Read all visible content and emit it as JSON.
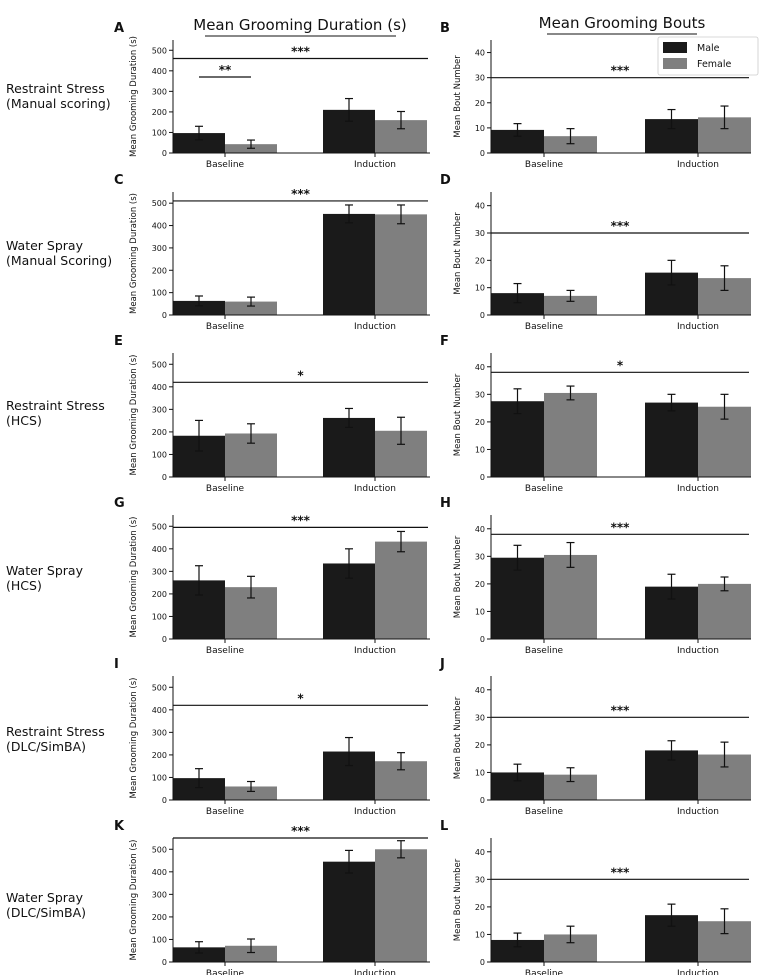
{
  "figure": {
    "column_titles": [
      "Mean Grooming Duration (s)",
      "Mean Grooming Bouts"
    ],
    "row_labels": [
      [
        "Restraint Stress",
        "(Manual scoring)"
      ],
      [
        "Water Spray",
        "(Manual Scoring)"
      ],
      [
        "Restraint Stress",
        "(HCS)"
      ],
      [
        "Water Spray",
        "(HCS)"
      ],
      [
        "Restraint Stress",
        "(DLC/SimBA)"
      ],
      [
        "Water Spray",
        "(DLC/SimBA)"
      ]
    ],
    "legend": {
      "items": [
        "Male",
        "Female"
      ]
    },
    "colors": {
      "male": "#1a1a1a",
      "female": "#7f7f7f",
      "axis": "#111111"
    }
  },
  "chart_data": [
    {
      "panel": "A",
      "type": "bar",
      "categories": [
        "Baseline",
        "Induction"
      ],
      "series": [
        {
          "name": "Male",
          "values": [
            97,
            210
          ],
          "errors": [
            33,
            55
          ]
        },
        {
          "name": "Female",
          "values": [
            43,
            160
          ],
          "errors": [
            20,
            42
          ]
        }
      ],
      "ylabel": "Mean Grooming Duration (s)",
      "ylim": [
        0,
        550
      ],
      "yticks": [
        0,
        100,
        200,
        300,
        400,
        500
      ],
      "significance": [
        {
          "label": "***",
          "span": "all",
          "y": 460
        },
        {
          "label": "**",
          "span": "baseline",
          "y": 370
        }
      ]
    },
    {
      "panel": "B",
      "type": "bar",
      "categories": [
        "Baseline",
        "Induction"
      ],
      "series": [
        {
          "name": "Male",
          "values": [
            9.2,
            13.5
          ],
          "errors": [
            2.5,
            3.8
          ]
        },
        {
          "name": "Female",
          "values": [
            6.7,
            14.2
          ],
          "errors": [
            3,
            4.5
          ]
        }
      ],
      "ylabel": "Mean Bout Number",
      "ylim": [
        0,
        45
      ],
      "yticks": [
        0,
        10,
        20,
        30,
        40
      ],
      "significance": [
        {
          "label": "***",
          "span": "all",
          "y": 30
        }
      ]
    },
    {
      "panel": "C",
      "type": "bar",
      "categories": [
        "Baseline",
        "Induction"
      ],
      "series": [
        {
          "name": "Male",
          "values": [
            63,
            452
          ],
          "errors": [
            22,
            40
          ]
        },
        {
          "name": "Female",
          "values": [
            60,
            450
          ],
          "errors": [
            20,
            42
          ]
        }
      ],
      "ylabel": "Mean Grooming Duration (s)",
      "ylim": [
        0,
        550
      ],
      "yticks": [
        0,
        100,
        200,
        300,
        400,
        500
      ],
      "significance": [
        {
          "label": "***",
          "span": "all",
          "y": 510
        }
      ]
    },
    {
      "panel": "D",
      "type": "bar",
      "categories": [
        "Baseline",
        "Induction"
      ],
      "series": [
        {
          "name": "Male",
          "values": [
            8,
            15.5
          ],
          "errors": [
            3.5,
            4.5
          ]
        },
        {
          "name": "Female",
          "values": [
            7,
            13.5
          ],
          "errors": [
            2,
            4.5
          ]
        }
      ],
      "ylabel": "Mean Bout Number",
      "ylim": [
        0,
        45
      ],
      "yticks": [
        0,
        10,
        20,
        30,
        40
      ],
      "significance": [
        {
          "label": "***",
          "span": "all",
          "y": 30
        }
      ]
    },
    {
      "panel": "E",
      "type": "bar",
      "categories": [
        "Baseline",
        "Induction"
      ],
      "series": [
        {
          "name": "Male",
          "values": [
            183,
            262
          ],
          "errors": [
            68,
            42
          ]
        },
        {
          "name": "Female",
          "values": [
            193,
            205
          ],
          "errors": [
            43,
            60
          ]
        }
      ],
      "ylabel": "Mean Grooming Duration (s)",
      "ylim": [
        0,
        550
      ],
      "yticks": [
        0,
        100,
        200,
        300,
        400,
        500
      ],
      "significance": [
        {
          "label": "*",
          "span": "all",
          "y": 420
        }
      ]
    },
    {
      "panel": "F",
      "type": "bar",
      "categories": [
        "Baseline",
        "Induction"
      ],
      "series": [
        {
          "name": "Male",
          "values": [
            27.5,
            27
          ],
          "errors": [
            4.5,
            3
          ]
        },
        {
          "name": "Female",
          "values": [
            30.5,
            25.5
          ],
          "errors": [
            2.5,
            4.5
          ]
        }
      ],
      "ylabel": "Mean Bout Number",
      "ylim": [
        0,
        45
      ],
      "yticks": [
        0,
        10,
        20,
        30,
        40
      ],
      "significance": [
        {
          "label": "*",
          "span": "all",
          "y": 38
        }
      ]
    },
    {
      "panel": "G",
      "type": "bar",
      "categories": [
        "Baseline",
        "Induction"
      ],
      "series": [
        {
          "name": "Male",
          "values": [
            260,
            335
          ],
          "errors": [
            65,
            65
          ]
        },
        {
          "name": "Female",
          "values": [
            230,
            432
          ],
          "errors": [
            48,
            45
          ]
        }
      ],
      "ylabel": "Mean Grooming Duration (s)",
      "ylim": [
        0,
        550
      ],
      "yticks": [
        0,
        100,
        200,
        300,
        400,
        500
      ],
      "significance": [
        {
          "label": "***",
          "span": "all",
          "y": 495
        }
      ]
    },
    {
      "panel": "H",
      "type": "bar",
      "categories": [
        "Baseline",
        "Induction"
      ],
      "series": [
        {
          "name": "Male",
          "values": [
            29.5,
            19
          ],
          "errors": [
            4.5,
            4.5
          ]
        },
        {
          "name": "Female",
          "values": [
            30.5,
            20
          ],
          "errors": [
            4.5,
            2.5
          ]
        }
      ],
      "ylabel": "Mean Bout Number",
      "ylim": [
        0,
        45
      ],
      "yticks": [
        0,
        10,
        20,
        30,
        40
      ],
      "significance": [
        {
          "label": "***",
          "span": "all",
          "y": 38
        }
      ]
    },
    {
      "panel": "I",
      "type": "bar",
      "categories": [
        "Baseline",
        "Induction"
      ],
      "series": [
        {
          "name": "Male",
          "values": [
            97,
            215
          ],
          "errors": [
            42,
            62
          ]
        },
        {
          "name": "Female",
          "values": [
            60,
            172
          ],
          "errors": [
            22,
            38
          ]
        }
      ],
      "ylabel": "Mean Grooming Duration (s)",
      "ylim": [
        0,
        550
      ],
      "yticks": [
        0,
        100,
        200,
        300,
        400,
        500
      ],
      "significance": [
        {
          "label": "*",
          "span": "all",
          "y": 420
        }
      ]
    },
    {
      "panel": "J",
      "type": "bar",
      "categories": [
        "Baseline",
        "Induction"
      ],
      "series": [
        {
          "name": "Male",
          "values": [
            10,
            18
          ],
          "errors": [
            3,
            3.5
          ]
        },
        {
          "name": "Female",
          "values": [
            9.2,
            16.5
          ],
          "errors": [
            2.5,
            4.5
          ]
        }
      ],
      "ylabel": "Mean Bout Number",
      "ylim": [
        0,
        45
      ],
      "yticks": [
        0,
        10,
        20,
        30,
        40
      ],
      "significance": [
        {
          "label": "***",
          "span": "all",
          "y": 30
        }
      ]
    },
    {
      "panel": "K",
      "type": "bar",
      "categories": [
        "Baseline",
        "Induction"
      ],
      "series": [
        {
          "name": "Male",
          "values": [
            65,
            445
          ],
          "errors": [
            25,
            50
          ]
        },
        {
          "name": "Female",
          "values": [
            72,
            500
          ],
          "errors": [
            30,
            38
          ]
        }
      ],
      "ylabel": "Mean Grooming Duration (s)",
      "ylim": [
        0,
        550
      ],
      "yticks": [
        0,
        100,
        200,
        300,
        400,
        500
      ],
      "significance": [
        {
          "label": "***",
          "span": "all",
          "y": 550
        }
      ]
    },
    {
      "panel": "L",
      "type": "bar",
      "categories": [
        "Baseline",
        "Induction"
      ],
      "series": [
        {
          "name": "Male",
          "values": [
            8,
            17
          ],
          "errors": [
            2.5,
            4
          ]
        },
        {
          "name": "Female",
          "values": [
            10,
            14.8
          ],
          "errors": [
            3,
            4.5
          ]
        }
      ],
      "ylabel": "Mean Bout Number",
      "ylim": [
        0,
        45
      ],
      "yticks": [
        0,
        10,
        20,
        30,
        40
      ],
      "significance": [
        {
          "label": "***",
          "span": "all",
          "y": 30
        }
      ]
    }
  ]
}
